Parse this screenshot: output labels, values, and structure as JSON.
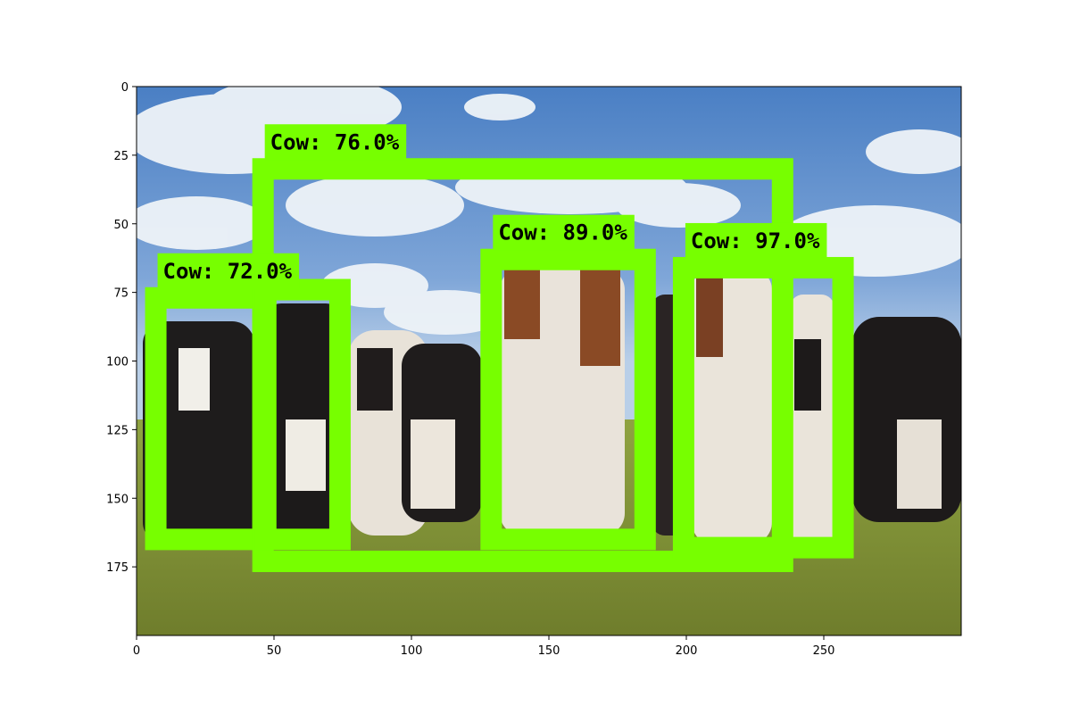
{
  "image": {
    "description_scene": "herd of holstein and brown-white cows on grass under blue cloudy sky",
    "extent": {
      "x": [
        0,
        300
      ],
      "y": [
        0,
        200
      ]
    }
  },
  "axes": {
    "x_ticks": [
      0,
      50,
      100,
      150,
      200,
      250
    ],
    "y_ticks": [
      0,
      25,
      50,
      75,
      100,
      125,
      150,
      175
    ]
  },
  "detections": [
    {
      "label": "Cow: 72.0%",
      "box": {
        "x0": 7,
        "y0": 77,
        "x1": 46,
        "y1": 165
      }
    },
    {
      "label": "Cow: 76.0%",
      "box": {
        "x0": 46,
        "y0": 30,
        "x1": 235,
        "y1": 173
      }
    },
    {
      "label": "Cow: 89.0%",
      "box": {
        "x0": 129,
        "y0": 63,
        "x1": 185,
        "y1": 165
      }
    },
    {
      "label": "Cow: 97.0%",
      "box": {
        "x0": 199,
        "y0": 66,
        "x1": 257,
        "y1": 168
      }
    },
    {
      "label": "",
      "box": {
        "x0": 47,
        "y0": 74,
        "x1": 74,
        "y1": 165
      }
    }
  ],
  "colors": {
    "box": "#77ff00",
    "label_bg": "#77ff00",
    "label_text": "#000000"
  }
}
